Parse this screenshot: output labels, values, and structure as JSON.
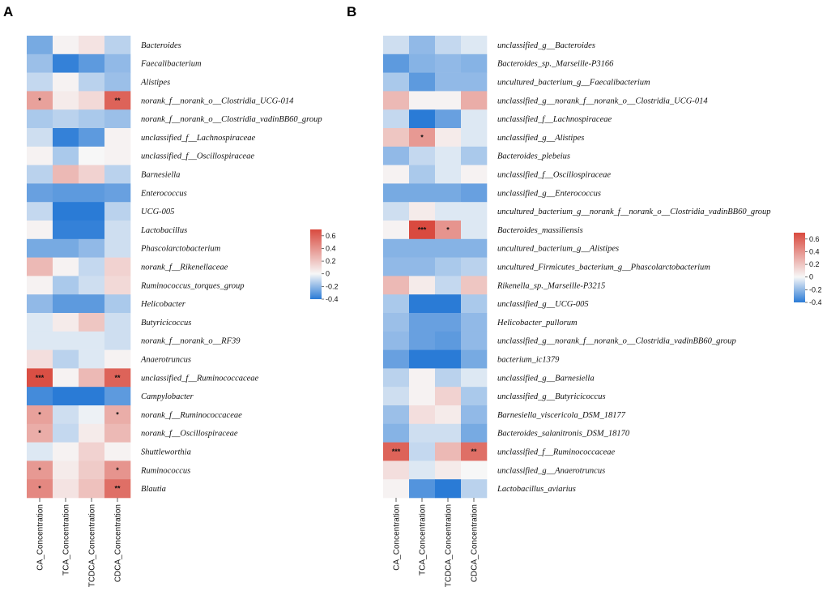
{
  "chart_data": [
    {
      "type": "heatmap",
      "panel": "A",
      "columns": [
        "CA_Concentration",
        "TCA_Concentration",
        "TCDCA_Concentration",
        "CDCA_Concentration"
      ],
      "rows": [
        "Bacteroides",
        "Faecalibacterium",
        "Alistipes",
        "norank_f__norank_o__Clostridia_UCG-014",
        "norank_f__norank_o__Clostridia_vadinBB60_group",
        "unclassified_f__Lachnospiraceae",
        "unclassified_f__Oscillospiraceae",
        "Barnesiella",
        "Enterococcus",
        "UCG-005",
        "Lactobacillus",
        "Phascolarctobacterium",
        "norank_f__Rikenellaceae",
        "Ruminococcus_torques_group",
        "Helicobacter",
        "Butyricicoccus",
        "norank_f__norank_o__RF39",
        "Anaerotruncus",
        "unclassified_f__Ruminococcaceae",
        "Campylobacter",
        "norank_f__Ruminococcaceae",
        "norank_f__Oscillospiraceae",
        "Shuttleworthia",
        "Ruminococcus",
        "Blautia"
      ],
      "values": [
        [
          -0.25,
          0.02,
          0.08,
          -0.12
        ],
        [
          -0.18,
          -0.38,
          -0.3,
          -0.2
        ],
        [
          -0.1,
          0.02,
          -0.12,
          -0.18
        ],
        [
          0.35,
          0.05,
          0.12,
          0.6
        ],
        [
          -0.15,
          -0.12,
          -0.15,
          -0.18
        ],
        [
          -0.08,
          -0.38,
          -0.3,
          0.02
        ],
        [
          0.02,
          -0.15,
          0.0,
          0.02
        ],
        [
          -0.12,
          0.25,
          0.15,
          -0.12
        ],
        [
          -0.28,
          -0.3,
          -0.3,
          -0.28
        ],
        [
          -0.1,
          -0.4,
          -0.4,
          -0.12
        ],
        [
          0.02,
          -0.38,
          -0.38,
          -0.08
        ],
        [
          -0.25,
          -0.25,
          -0.2,
          -0.08
        ],
        [
          0.25,
          0.02,
          -0.1,
          0.15
        ],
        [
          0.02,
          -0.15,
          -0.08,
          0.12
        ],
        [
          -0.2,
          -0.3,
          -0.3,
          -0.15
        ],
        [
          -0.05,
          0.05,
          0.2,
          -0.08
        ],
        [
          -0.05,
          -0.05,
          -0.05,
          -0.08
        ],
        [
          0.1,
          -0.12,
          -0.05,
          0.02
        ],
        [
          0.68,
          0.02,
          0.25,
          0.6
        ],
        [
          -0.35,
          -0.4,
          -0.4,
          -0.3
        ],
        [
          0.35,
          -0.08,
          -0.02,
          0.3
        ],
        [
          0.3,
          -0.1,
          0.05,
          0.25
        ],
        [
          -0.05,
          0.02,
          0.15,
          0.02
        ],
        [
          0.38,
          0.05,
          0.18,
          0.4
        ],
        [
          0.45,
          0.08,
          0.22,
          0.55
        ]
      ],
      "significance": [
        [
          "",
          "",
          "",
          ""
        ],
        [
          "",
          "",
          "",
          ""
        ],
        [
          "",
          "",
          "",
          ""
        ],
        [
          "*",
          "",
          "",
          "**"
        ],
        [
          "",
          "",
          "",
          ""
        ],
        [
          "",
          "",
          "",
          ""
        ],
        [
          "",
          "",
          "",
          ""
        ],
        [
          "",
          "",
          "",
          ""
        ],
        [
          "",
          "",
          "",
          ""
        ],
        [
          "",
          "",
          "",
          ""
        ],
        [
          "",
          "",
          "",
          ""
        ],
        [
          "",
          "",
          "",
          ""
        ],
        [
          "",
          "",
          "",
          ""
        ],
        [
          "",
          "",
          "",
          ""
        ],
        [
          "",
          "",
          "",
          ""
        ],
        [
          "",
          "",
          "",
          ""
        ],
        [
          "",
          "",
          "",
          ""
        ],
        [
          "",
          "",
          "",
          ""
        ],
        [
          "***",
          "",
          "",
          "**"
        ],
        [
          "",
          "",
          "",
          ""
        ],
        [
          "*",
          "",
          "",
          "*"
        ],
        [
          "*",
          "",
          "",
          ""
        ],
        [
          "",
          "",
          "",
          ""
        ],
        [
          "*",
          "",
          "",
          "*"
        ],
        [
          "*",
          "",
          "",
          "**"
        ]
      ],
      "legend": {
        "ticks": [
          "0.6",
          "0.4",
          "0.2",
          "0",
          "-0.2",
          "-0.4"
        ],
        "range": [
          -0.4,
          0.7
        ]
      }
    },
    {
      "type": "heatmap",
      "panel": "B",
      "columns": [
        "CA_Concentration",
        "TCA_Concentration",
        "TCDCA_Concentration",
        "CDCA_Concentration"
      ],
      "rows": [
        "unclassified_g__Bacteroides",
        "Bacteroides_sp._Marseille-P3166",
        "uncultured_bacterium_g__Faecalibacterium",
        "unclassified_g__norank_f__norank_o__Clostridia_UCG-014",
        "unclassified_f__Lachnospiraceae",
        "unclassified_g__Alistipes",
        "Bacteroides_plebeius",
        "unclassified_f__Oscillospiraceae",
        "unclassified_g__Enterococcus",
        "uncultured_bacterium_g__norank_f__norank_o__Clostridia_vadinBB60_group",
        "Bacteroides_massiliensis",
        "uncultured_bacterium_g__Alistipes",
        "uncultured_Firmicutes_bacterium_g__Phascolarctobacterium",
        "Rikenella_sp._Marseille-P3215",
        "unclassified_g__UCG-005",
        "Helicobacter_pullorum",
        "unclassified_g__norank_f__norank_o__Clostridia_vadinBB60_group",
        "bacterium_ic1379",
        "unclassified_g__Barnesiella",
        "unclassified_g__Butyricicoccus",
        "Barnesiella_viscericola_DSM_18177",
        "Bacteroides_salanitronis_DSM_18170",
        "unclassified_f__Ruminococcaceae",
        "unclassified_g__Anaerotruncus",
        "Lactobacillus_aviarius"
      ],
      "values": [
        [
          -0.08,
          -0.2,
          -0.1,
          -0.05
        ],
        [
          -0.3,
          -0.22,
          -0.2,
          -0.22
        ],
        [
          -0.15,
          -0.3,
          -0.2,
          -0.2
        ],
        [
          0.25,
          0.02,
          0.02,
          0.3
        ],
        [
          -0.1,
          -0.45,
          -0.28,
          -0.05
        ],
        [
          0.2,
          0.38,
          0.05,
          -0.05
        ],
        [
          -0.2,
          -0.1,
          -0.05,
          -0.15
        ],
        [
          0.02,
          -0.15,
          -0.05,
          0.02
        ],
        [
          -0.25,
          -0.25,
          -0.25,
          -0.28
        ],
        [
          -0.08,
          0.05,
          -0.05,
          -0.05
        ],
        [
          0.02,
          0.75,
          0.4,
          -0.05
        ],
        [
          -0.22,
          -0.22,
          -0.22,
          -0.22
        ],
        [
          -0.2,
          -0.2,
          -0.15,
          -0.12
        ],
        [
          0.25,
          0.05,
          -0.1,
          0.2
        ],
        [
          -0.15,
          -0.42,
          -0.45,
          -0.15
        ],
        [
          -0.18,
          -0.28,
          -0.28,
          -0.2
        ],
        [
          -0.2,
          -0.28,
          -0.3,
          -0.2
        ],
        [
          -0.28,
          -0.42,
          -0.42,
          -0.25
        ],
        [
          -0.12,
          0.02,
          -0.12,
          -0.05
        ],
        [
          -0.08,
          0.02,
          0.15,
          -0.15
        ],
        [
          -0.18,
          0.1,
          0.05,
          -0.2
        ],
        [
          -0.22,
          -0.08,
          -0.08,
          -0.25
        ],
        [
          0.6,
          -0.1,
          0.25,
          0.55
        ],
        [
          0.1,
          -0.05,
          0.05,
          0.0
        ],
        [
          0.02,
          -0.32,
          -0.4,
          -0.12
        ]
      ],
      "significance": [
        [
          "",
          "",
          "",
          ""
        ],
        [
          "",
          "",
          "",
          ""
        ],
        [
          "",
          "",
          "",
          ""
        ],
        [
          "",
          "",
          "",
          ""
        ],
        [
          "",
          "",
          "",
          ""
        ],
        [
          "",
          "*",
          "",
          ""
        ],
        [
          "",
          "",
          "",
          ""
        ],
        [
          "",
          "",
          "",
          ""
        ],
        [
          "",
          "",
          "",
          ""
        ],
        [
          "",
          "",
          "",
          ""
        ],
        [
          "",
          "***",
          "*",
          ""
        ],
        [
          "",
          "",
          "",
          ""
        ],
        [
          "",
          "",
          "",
          ""
        ],
        [
          "",
          "",
          "",
          ""
        ],
        [
          "",
          "",
          "",
          ""
        ],
        [
          "",
          "",
          "",
          ""
        ],
        [
          "",
          "",
          "",
          ""
        ],
        [
          "",
          "",
          "",
          ""
        ],
        [
          "",
          "",
          "",
          ""
        ],
        [
          "",
          "",
          "",
          ""
        ],
        [
          "",
          "",
          "",
          ""
        ],
        [
          "",
          "",
          "",
          ""
        ],
        [
          "***",
          "",
          "",
          "**"
        ],
        [
          "",
          "",
          "",
          ""
        ],
        [
          "",
          "",
          "",
          ""
        ]
      ],
      "legend": {
        "ticks": [
          "0.6",
          "0.4",
          "0.2",
          "0",
          "-0.2",
          "-0.4"
        ],
        "range": [
          -0.4,
          0.7
        ]
      }
    }
  ],
  "panel_letters": [
    "A",
    "B"
  ],
  "colors": {
    "negative": "#2a7bd6",
    "neutral": "#f7f7f7",
    "positive": "#d94a3f"
  }
}
